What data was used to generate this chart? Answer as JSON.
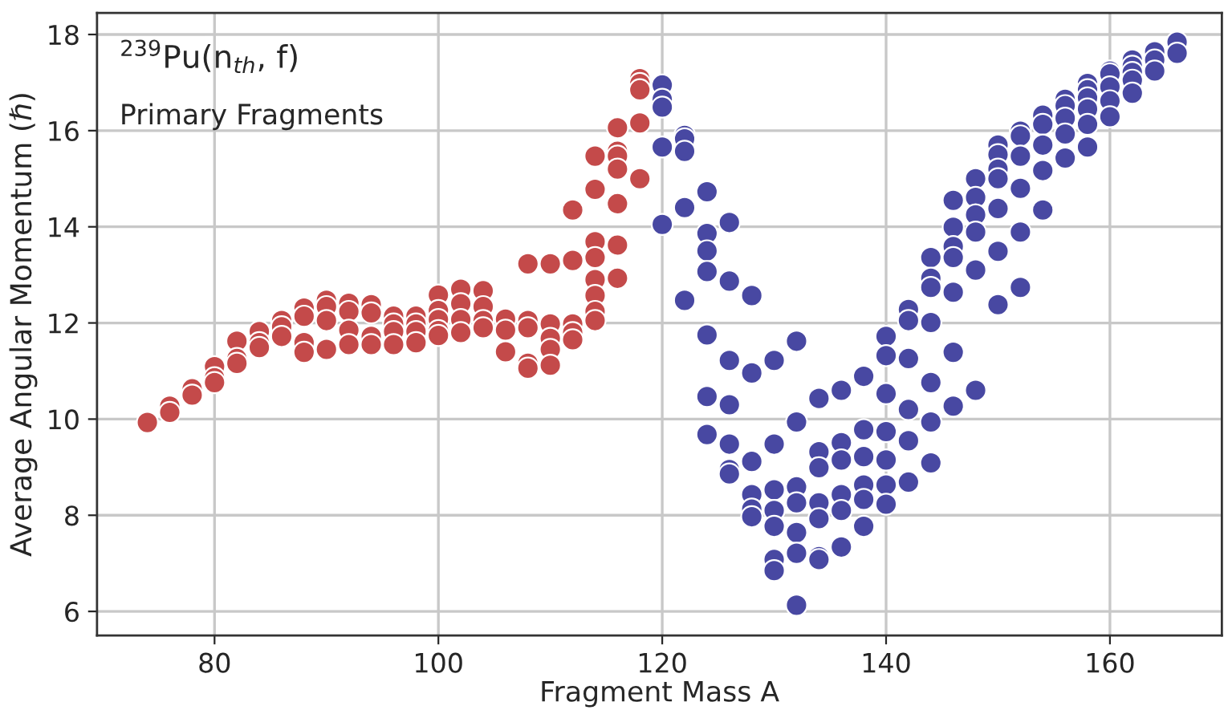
{
  "chart_data": {
    "type": "scatter",
    "xlabel": "Fragment Mass A",
    "ylabel": "Average Angular Momentum (ℏ)",
    "annotations": [
      "$^{239}$Pu(n$_{th}$, f)",
      "Primary Fragments"
    ],
    "xlim": [
      69.5,
      170
    ],
    "ylim": [
      5.5,
      18.45
    ],
    "xticks": [
      80,
      100,
      120,
      140,
      160
    ],
    "yticks": [
      6,
      8,
      10,
      12,
      14,
      16,
      18
    ],
    "grid": true,
    "marker": "circle",
    "series": [
      {
        "color": "#c44a4a",
        "x": [
          74,
          76,
          76,
          78,
          78,
          80,
          80,
          80,
          82,
          82,
          82,
          84,
          84,
          84,
          86,
          86,
          86,
          88,
          88,
          88,
          88,
          90,
          90,
          90,
          90,
          92,
          92,
          92,
          92,
          94,
          94,
          94,
          94,
          96,
          96,
          96,
          96,
          98,
          98,
          98,
          98,
          100,
          100,
          100,
          100,
          100,
          102,
          102,
          102,
          102,
          104,
          104,
          104,
          104,
          106,
          106,
          106,
          108,
          108,
          108,
          108,
          108,
          110,
          110,
          110,
          110,
          110,
          112,
          112,
          112,
          112,
          112,
          114,
          114,
          114,
          114,
          114,
          114,
          114,
          114,
          116,
          116,
          116,
          116,
          116,
          116,
          116,
          118,
          118,
          118,
          118,
          118
        ],
        "values": [
          9.93,
          10.27,
          10.14,
          10.63,
          10.5,
          11.09,
          10.86,
          10.76,
          11.62,
          11.26,
          11.16,
          11.82,
          11.59,
          11.49,
          12.05,
          11.92,
          11.72,
          12.31,
          12.14,
          11.59,
          11.39,
          12.47,
          12.34,
          12.05,
          11.45,
          12.41,
          12.24,
          11.85,
          11.55,
          12.38,
          12.21,
          11.72,
          11.55,
          12.14,
          11.98,
          11.82,
          11.55,
          12.14,
          11.98,
          11.82,
          11.59,
          12.58,
          12.26,
          12.07,
          11.84,
          11.74,
          12.7,
          12.4,
          12.07,
          11.8,
          12.67,
          12.34,
          12.05,
          11.9,
          12.08,
          11.85,
          11.4,
          13.23,
          12.05,
          11.9,
          11.16,
          11.06,
          13.23,
          11.98,
          11.68,
          11.45,
          11.12,
          14.35,
          13.3,
          11.98,
          11.8,
          11.65,
          15.47,
          14.78,
          13.69,
          13.36,
          12.9,
          12.57,
          12.24,
          12.05,
          16.06,
          15.57,
          15.47,
          15.2,
          14.48,
          13.62,
          12.93,
          17.08,
          16.98,
          16.85,
          16.16,
          15.0
        ]
      },
      {
        "color": "#4848a2",
        "x": [
          120,
          120,
          120,
          120,
          120,
          122,
          122,
          122,
          122,
          122,
          124,
          124,
          124,
          124,
          124,
          124,
          124,
          126,
          126,
          126,
          126,
          126,
          126,
          126,
          128,
          128,
          128,
          128,
          128,
          128,
          130,
          130,
          130,
          130,
          130,
          130,
          130,
          132,
          132,
          132,
          132,
          132,
          132,
          132,
          134,
          134,
          134,
          134,
          134,
          134,
          134,
          136,
          136,
          136,
          136,
          136,
          136,
          138,
          138,
          138,
          138,
          138,
          138,
          140,
          140,
          140,
          140,
          140,
          140,
          140,
          142,
          142,
          142,
          142,
          142,
          142,
          144,
          144,
          144,
          144,
          144,
          144,
          144,
          146,
          146,
          146,
          146,
          146,
          146,
          146,
          148,
          148,
          148,
          148,
          148,
          148,
          150,
          150,
          150,
          150,
          150,
          150,
          150,
          152,
          152,
          152,
          152,
          152,
          152,
          154,
          154,
          154,
          154,
          154,
          156,
          156,
          156,
          156,
          156,
          158,
          158,
          158,
          158,
          158,
          158,
          160,
          160,
          160,
          160,
          160,
          162,
          162,
          162,
          162,
          162,
          164,
          164,
          164,
          166,
          166
        ],
        "values": [
          16.95,
          16.65,
          16.49,
          15.66,
          14.05,
          15.9,
          15.83,
          15.57,
          14.4,
          12.47,
          14.73,
          13.86,
          13.5,
          13.07,
          11.75,
          10.47,
          9.68,
          14.09,
          12.87,
          11.22,
          10.3,
          9.48,
          8.95,
          8.86,
          12.57,
          10.96,
          9.12,
          8.43,
          8.13,
          7.97,
          11.22,
          9.48,
          8.53,
          8.1,
          7.77,
          7.08,
          6.85,
          11.62,
          9.94,
          8.59,
          8.26,
          7.64,
          7.21,
          6.13,
          10.43,
          9.32,
          8.99,
          8.26,
          7.93,
          7.14,
          7.08,
          10.6,
          9.51,
          9.15,
          8.43,
          8.1,
          7.34,
          10.89,
          9.78,
          9.22,
          8.63,
          8.33,
          7.77,
          11.72,
          11.32,
          10.53,
          9.74,
          9.15,
          8.63,
          8.23,
          12.28,
          12.05,
          11.26,
          10.2,
          9.55,
          8.69,
          13.36,
          12.93,
          12.74,
          12.01,
          10.76,
          9.94,
          9.09,
          14.55,
          13.99,
          13.59,
          13.36,
          12.64,
          11.39,
          10.27,
          15.0,
          14.61,
          14.25,
          13.89,
          13.1,
          10.6,
          15.7,
          15.5,
          15.2,
          15.0,
          14.38,
          13.49,
          12.38,
          15.99,
          15.89,
          15.47,
          14.8,
          13.89,
          12.74,
          16.32,
          16.13,
          15.7,
          15.17,
          14.35,
          16.65,
          16.52,
          16.26,
          15.93,
          15.43,
          16.98,
          16.85,
          16.68,
          16.45,
          16.13,
          15.66,
          17.24,
          17.18,
          16.91,
          16.62,
          16.29,
          17.47,
          17.34,
          17.21,
          17.05,
          16.78,
          17.64,
          17.47,
          17.24,
          17.84,
          17.61
        ]
      }
    ]
  }
}
